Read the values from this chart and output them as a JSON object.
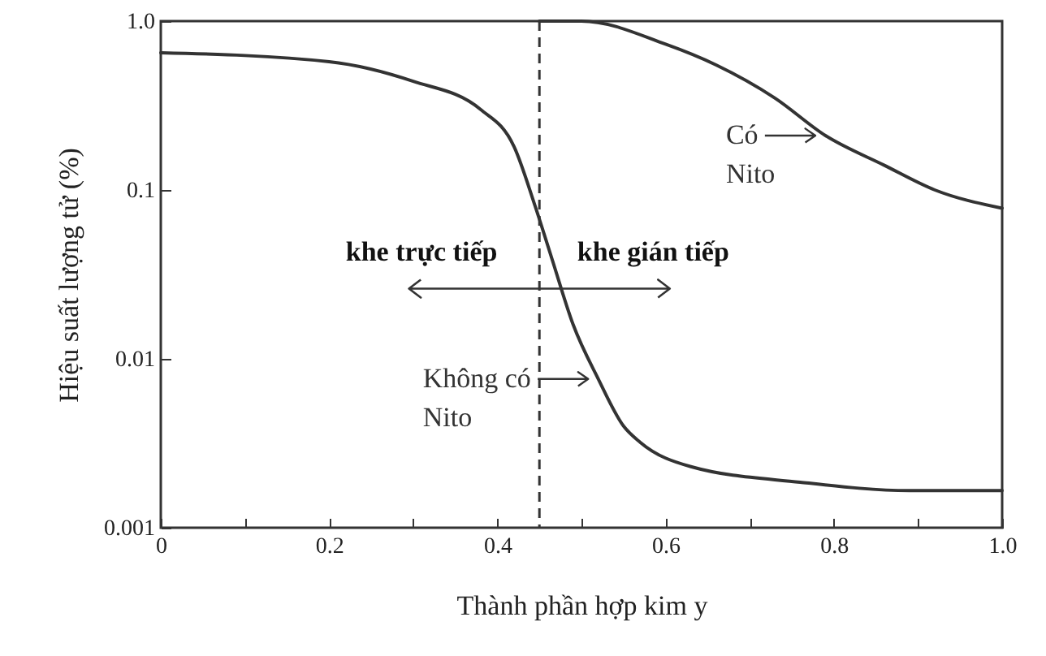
{
  "chart_data": {
    "type": "line",
    "xlabel": "Thành phần hợp kim y",
    "ylabel": "Hiệu suất lượng tử (%)",
    "xlim": [
      0,
      1
    ],
    "ylim": [
      0.001,
      1
    ],
    "log": "y",
    "xticks": [
      0,
      {
        "value": 0.1,
        "label": null
      },
      0.2,
      {
        "value": 0.3,
        "label": null
      },
      0.4,
      {
        "value": 0.5,
        "label": null
      },
      0.6,
      {
        "value": 0.7,
        "label": null
      },
      0.8,
      {
        "value": 0.9,
        "label": null
      },
      {
        "value": 1,
        "label": "1.0"
      }
    ],
    "yticks": [
      0.001,
      0.01,
      0.1,
      {
        "value": 1,
        "label": "1.0"
      }
    ],
    "series": [
      {
        "name": "Không có Nito",
        "color": "#333333",
        "x": [
          0,
          0.2,
          0.3,
          0.38,
          0.42,
          0.445,
          0.465,
          0.49,
          0.52,
          0.55,
          0.57,
          0.63,
          0.76,
          0.89,
          1.0
        ],
        "values": [
          0.65,
          0.575,
          0.44,
          0.3,
          0.18,
          0.08,
          0.039,
          0.016,
          0.0076,
          0.004,
          0.0032,
          0.0023,
          0.00186,
          0.00166,
          0.00166
        ]
      },
      {
        "name": "Có Nito",
        "color": "#333333",
        "x": [
          0.45,
          0.5,
          0.6,
          0.66,
          0.73,
          0.79,
          0.86,
          0.92,
          1.0
        ],
        "values": [
          1.0,
          1.0,
          0.73,
          0.55,
          0.35,
          0.21,
          0.14,
          0.1,
          0.078
        ]
      }
    ],
    "ref_lines": [
      {
        "axis": "x",
        "value": 0.45,
        "color": "#333333",
        "line_style": "dashed"
      }
    ],
    "annotations": [
      "khe trực tiếp",
      "khe gián tiếp"
    ],
    "grid": false,
    "legend": "center"
  }
}
